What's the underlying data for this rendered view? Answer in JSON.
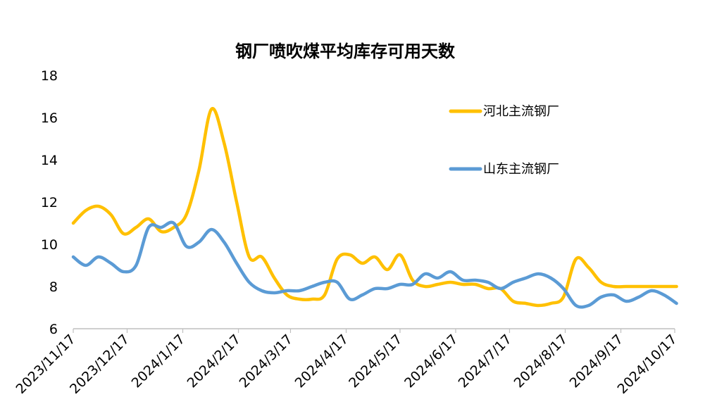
{
  "chart_data": {
    "type": "line",
    "title": "钢厂喷吹煤平均库存可用天数",
    "xlabel": "",
    "ylabel": "",
    "ylim": [
      6,
      18
    ],
    "yticks": [
      "6",
      "8",
      "10",
      "12",
      "14",
      "16",
      "18"
    ],
    "xtick_labels": [
      "2023/11/17",
      "2023/12/17",
      "2024/1/17",
      "2024/2/17",
      "2024/3/17",
      "2024/4/17",
      "2024/5/17",
      "2024/6/17",
      "2024/7/17",
      "2024/8/17",
      "2024/9/17",
      "2024/10/17"
    ],
    "legend_position": "right",
    "grid": false,
    "series": [
      {
        "name": "河北主流钢厂",
        "color": "#FFC000",
        "x": [
          "2023/11/17",
          "2023/11/24",
          "2023/12/1",
          "2023/12/8",
          "2023/12/15",
          "2023/12/22",
          "2023/12/29",
          "2024/1/5",
          "2024/1/12",
          "2024/1/19",
          "2024/1/26",
          "2024/2/2",
          "2024/2/9",
          "2024/2/16",
          "2024/2/23",
          "2024/3/1",
          "2024/3/8",
          "2024/3/15",
          "2024/3/22",
          "2024/3/29",
          "2024/4/5",
          "2024/4/12",
          "2024/4/19",
          "2024/4/26",
          "2024/5/3",
          "2024/5/10",
          "2024/5/17",
          "2024/5/24",
          "2024/5/31",
          "2024/6/7",
          "2024/6/14",
          "2024/6/21",
          "2024/6/28",
          "2024/7/5",
          "2024/7/12",
          "2024/7/19",
          "2024/7/26",
          "2024/8/2",
          "2024/8/9",
          "2024/8/16",
          "2024/8/23",
          "2024/8/30",
          "2024/9/6",
          "2024/9/13",
          "2024/9/20",
          "2024/9/27",
          "2024/10/4",
          "2024/10/11",
          "2024/10/18"
        ],
        "values": [
          11.0,
          11.6,
          11.8,
          11.4,
          10.5,
          10.8,
          11.2,
          10.6,
          10.8,
          11.4,
          13.5,
          16.4,
          14.8,
          12.0,
          9.4,
          9.4,
          8.4,
          7.6,
          7.4,
          7.4,
          7.6,
          9.3,
          9.5,
          9.1,
          9.4,
          8.8,
          9.5,
          8.3,
          8.0,
          8.1,
          8.2,
          8.1,
          8.1,
          7.9,
          7.9,
          7.3,
          7.2,
          7.1,
          7.2,
          7.5,
          9.3,
          8.9,
          8.2,
          8.0,
          8.0,
          8.0,
          8.0,
          8.0,
          8.0
        ]
      },
      {
        "name": "山东主流钢厂",
        "color": "#5B9BD5",
        "x": [
          "2023/11/17",
          "2023/11/24",
          "2023/12/1",
          "2023/12/8",
          "2023/12/15",
          "2023/12/22",
          "2023/12/29",
          "2024/1/5",
          "2024/1/12",
          "2024/1/19",
          "2024/1/26",
          "2024/2/2",
          "2024/2/9",
          "2024/2/16",
          "2024/2/23",
          "2024/3/1",
          "2024/3/8",
          "2024/3/15",
          "2024/3/22",
          "2024/3/29",
          "2024/4/5",
          "2024/4/12",
          "2024/4/19",
          "2024/4/26",
          "2024/5/3",
          "2024/5/10",
          "2024/5/17",
          "2024/5/24",
          "2024/5/31",
          "2024/6/7",
          "2024/6/14",
          "2024/6/21",
          "2024/6/28",
          "2024/7/5",
          "2024/7/12",
          "2024/7/19",
          "2024/7/26",
          "2024/8/2",
          "2024/8/9",
          "2024/8/16",
          "2024/8/23",
          "2024/8/30",
          "2024/9/6",
          "2024/9/13",
          "2024/9/20",
          "2024/9/27",
          "2024/10/4",
          "2024/10/11",
          "2024/10/18"
        ],
        "values": [
          9.4,
          9.0,
          9.4,
          9.1,
          8.7,
          9.0,
          10.8,
          10.8,
          11.0,
          9.9,
          10.1,
          10.7,
          10.1,
          9.1,
          8.2,
          7.8,
          7.7,
          7.8,
          7.8,
          8.0,
          8.2,
          8.2,
          7.4,
          7.6,
          7.9,
          7.9,
          8.1,
          8.1,
          8.6,
          8.4,
          8.7,
          8.3,
          8.3,
          8.2,
          7.9,
          8.2,
          8.4,
          8.6,
          8.4,
          7.9,
          7.1,
          7.1,
          7.5,
          7.6,
          7.3,
          7.5,
          7.8,
          7.6,
          7.2
        ]
      }
    ]
  }
}
